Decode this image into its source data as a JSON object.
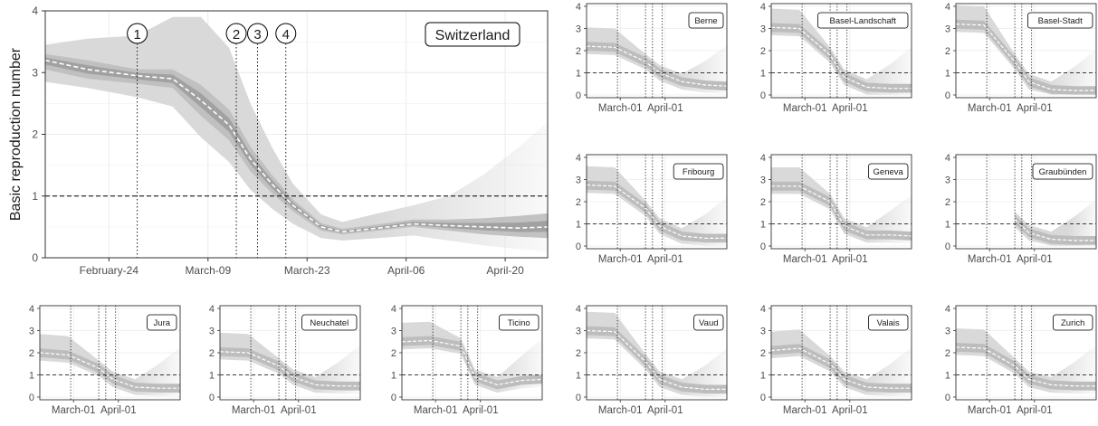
{
  "chart_data": {
    "type": "line",
    "ylabel": "Basic reproduction number",
    "ylim": [
      0,
      4
    ],
    "yticks": [
      0,
      1,
      2,
      3,
      4
    ],
    "threshold_line": 1,
    "grid": "on",
    "colors": {
      "band_outer": "#d9d9d9",
      "band_mid": "#bdbdbd",
      "band_inner": "#999999",
      "median_line": "#ffffff",
      "grid": "#ebebeb",
      "axis_box": "#333333"
    },
    "main_panel": {
      "region": "Switzerland",
      "x_range": [
        "2020-02-15",
        "2020-04-26"
      ],
      "x_ticks": [
        {
          "date": "2020-02-24",
          "label": "February-24"
        },
        {
          "date": "2020-03-09",
          "label": "March-09"
        },
        {
          "date": "2020-03-23",
          "label": "March-23"
        },
        {
          "date": "2020-04-06",
          "label": "April-06"
        },
        {
          "date": "2020-04-20",
          "label": "April-20"
        }
      ],
      "interventions": [
        {
          "label": "1",
          "date": "2020-02-28"
        },
        {
          "label": "2",
          "date": "2020-03-13"
        },
        {
          "label": "3",
          "date": "2020-03-16"
        },
        {
          "label": "4",
          "date": "2020-03-20"
        }
      ],
      "series": {
        "x": [
          "2020-02-15",
          "2020-02-21",
          "2020-02-28",
          "2020-03-04",
          "2020-03-08",
          "2020-03-12",
          "2020-03-15",
          "2020-03-18",
          "2020-03-21",
          "2020-03-25",
          "2020-03-28",
          "2020-04-02",
          "2020-04-07",
          "2020-04-12",
          "2020-04-17",
          "2020-04-22",
          "2020-04-26"
        ],
        "median": [
          3.2,
          3.05,
          2.95,
          2.9,
          2.55,
          2.15,
          1.6,
          1.2,
          0.85,
          0.5,
          0.42,
          0.48,
          0.55,
          0.52,
          0.5,
          0.48,
          0.5
        ],
        "inner_lo": [
          3.05,
          2.9,
          2.82,
          2.75,
          2.3,
          1.9,
          1.4,
          1.05,
          0.75,
          0.44,
          0.38,
          0.44,
          0.5,
          0.44,
          0.38,
          0.34,
          0.32
        ],
        "inner_hi": [
          3.3,
          3.2,
          3.05,
          3.05,
          2.8,
          2.4,
          1.8,
          1.35,
          0.95,
          0.56,
          0.47,
          0.54,
          0.62,
          0.62,
          0.64,
          0.68,
          0.72
        ],
        "outer_lo": [
          2.85,
          2.75,
          2.6,
          2.45,
          1.95,
          1.55,
          1.1,
          0.8,
          0.55,
          0.32,
          0.28,
          0.32,
          0.36,
          0.28,
          0.2,
          0.14,
          0.1
        ],
        "outer_hi": [
          3.45,
          3.55,
          3.6,
          3.9,
          3.9,
          3.4,
          2.5,
          1.8,
          1.2,
          0.7,
          0.58,
          0.72,
          0.85,
          1.0,
          1.35,
          1.8,
          2.2
        ]
      }
    },
    "cantons": [
      {
        "name": "Berne",
        "profile": [
          2.2,
          2.15,
          1.5,
          1.0,
          0.6,
          0.45,
          0.4
        ],
        "start": 0
      },
      {
        "name": "Basel-Landschaft",
        "profile": [
          3.05,
          3.0,
          1.8,
          0.8,
          0.35,
          0.3,
          0.3
        ],
        "start": 0
      },
      {
        "name": "Basel-Stadt",
        "profile": [
          3.2,
          3.15,
          1.5,
          0.6,
          0.25,
          0.2,
          0.2
        ],
        "start": 0
      },
      {
        "name": "Fribourg",
        "profile": [
          2.75,
          2.7,
          1.7,
          0.9,
          0.45,
          0.35,
          0.35
        ],
        "start": 0
      },
      {
        "name": "Geneva",
        "profile": [
          2.7,
          2.7,
          2.0,
          0.9,
          0.5,
          0.5,
          0.45
        ],
        "start": 0
      },
      {
        "name": "Graubünden",
        "profile": [
          2.0,
          2.0,
          1.2,
          0.6,
          0.3,
          0.25,
          0.25
        ],
        "start": 0.36
      },
      {
        "name": "Jura",
        "profile": [
          2.0,
          1.9,
          1.3,
          0.8,
          0.45,
          0.4,
          0.4
        ],
        "start": 0
      },
      {
        "name": "Neuchatel",
        "profile": [
          2.05,
          2.0,
          1.4,
          0.9,
          0.55,
          0.5,
          0.5
        ],
        "start": 0
      },
      {
        "name": "Ticino",
        "profile": [
          2.5,
          2.55,
          2.3,
          0.9,
          0.55,
          0.75,
          0.8
        ],
        "start": 0
      },
      {
        "name": "Vaud",
        "profile": [
          3.0,
          2.95,
          1.6,
          0.8,
          0.45,
          0.35,
          0.35
        ],
        "start": 0
      },
      {
        "name": "Valais",
        "profile": [
          2.1,
          2.2,
          1.5,
          0.8,
          0.45,
          0.4,
          0.4
        ],
        "start": 0
      },
      {
        "name": "Zurich",
        "profile": [
          2.25,
          2.2,
          1.4,
          0.8,
          0.55,
          0.5,
          0.5
        ],
        "start": 0
      }
    ],
    "canton_x_ticks": [
      "March-01",
      "April-01"
    ]
  }
}
